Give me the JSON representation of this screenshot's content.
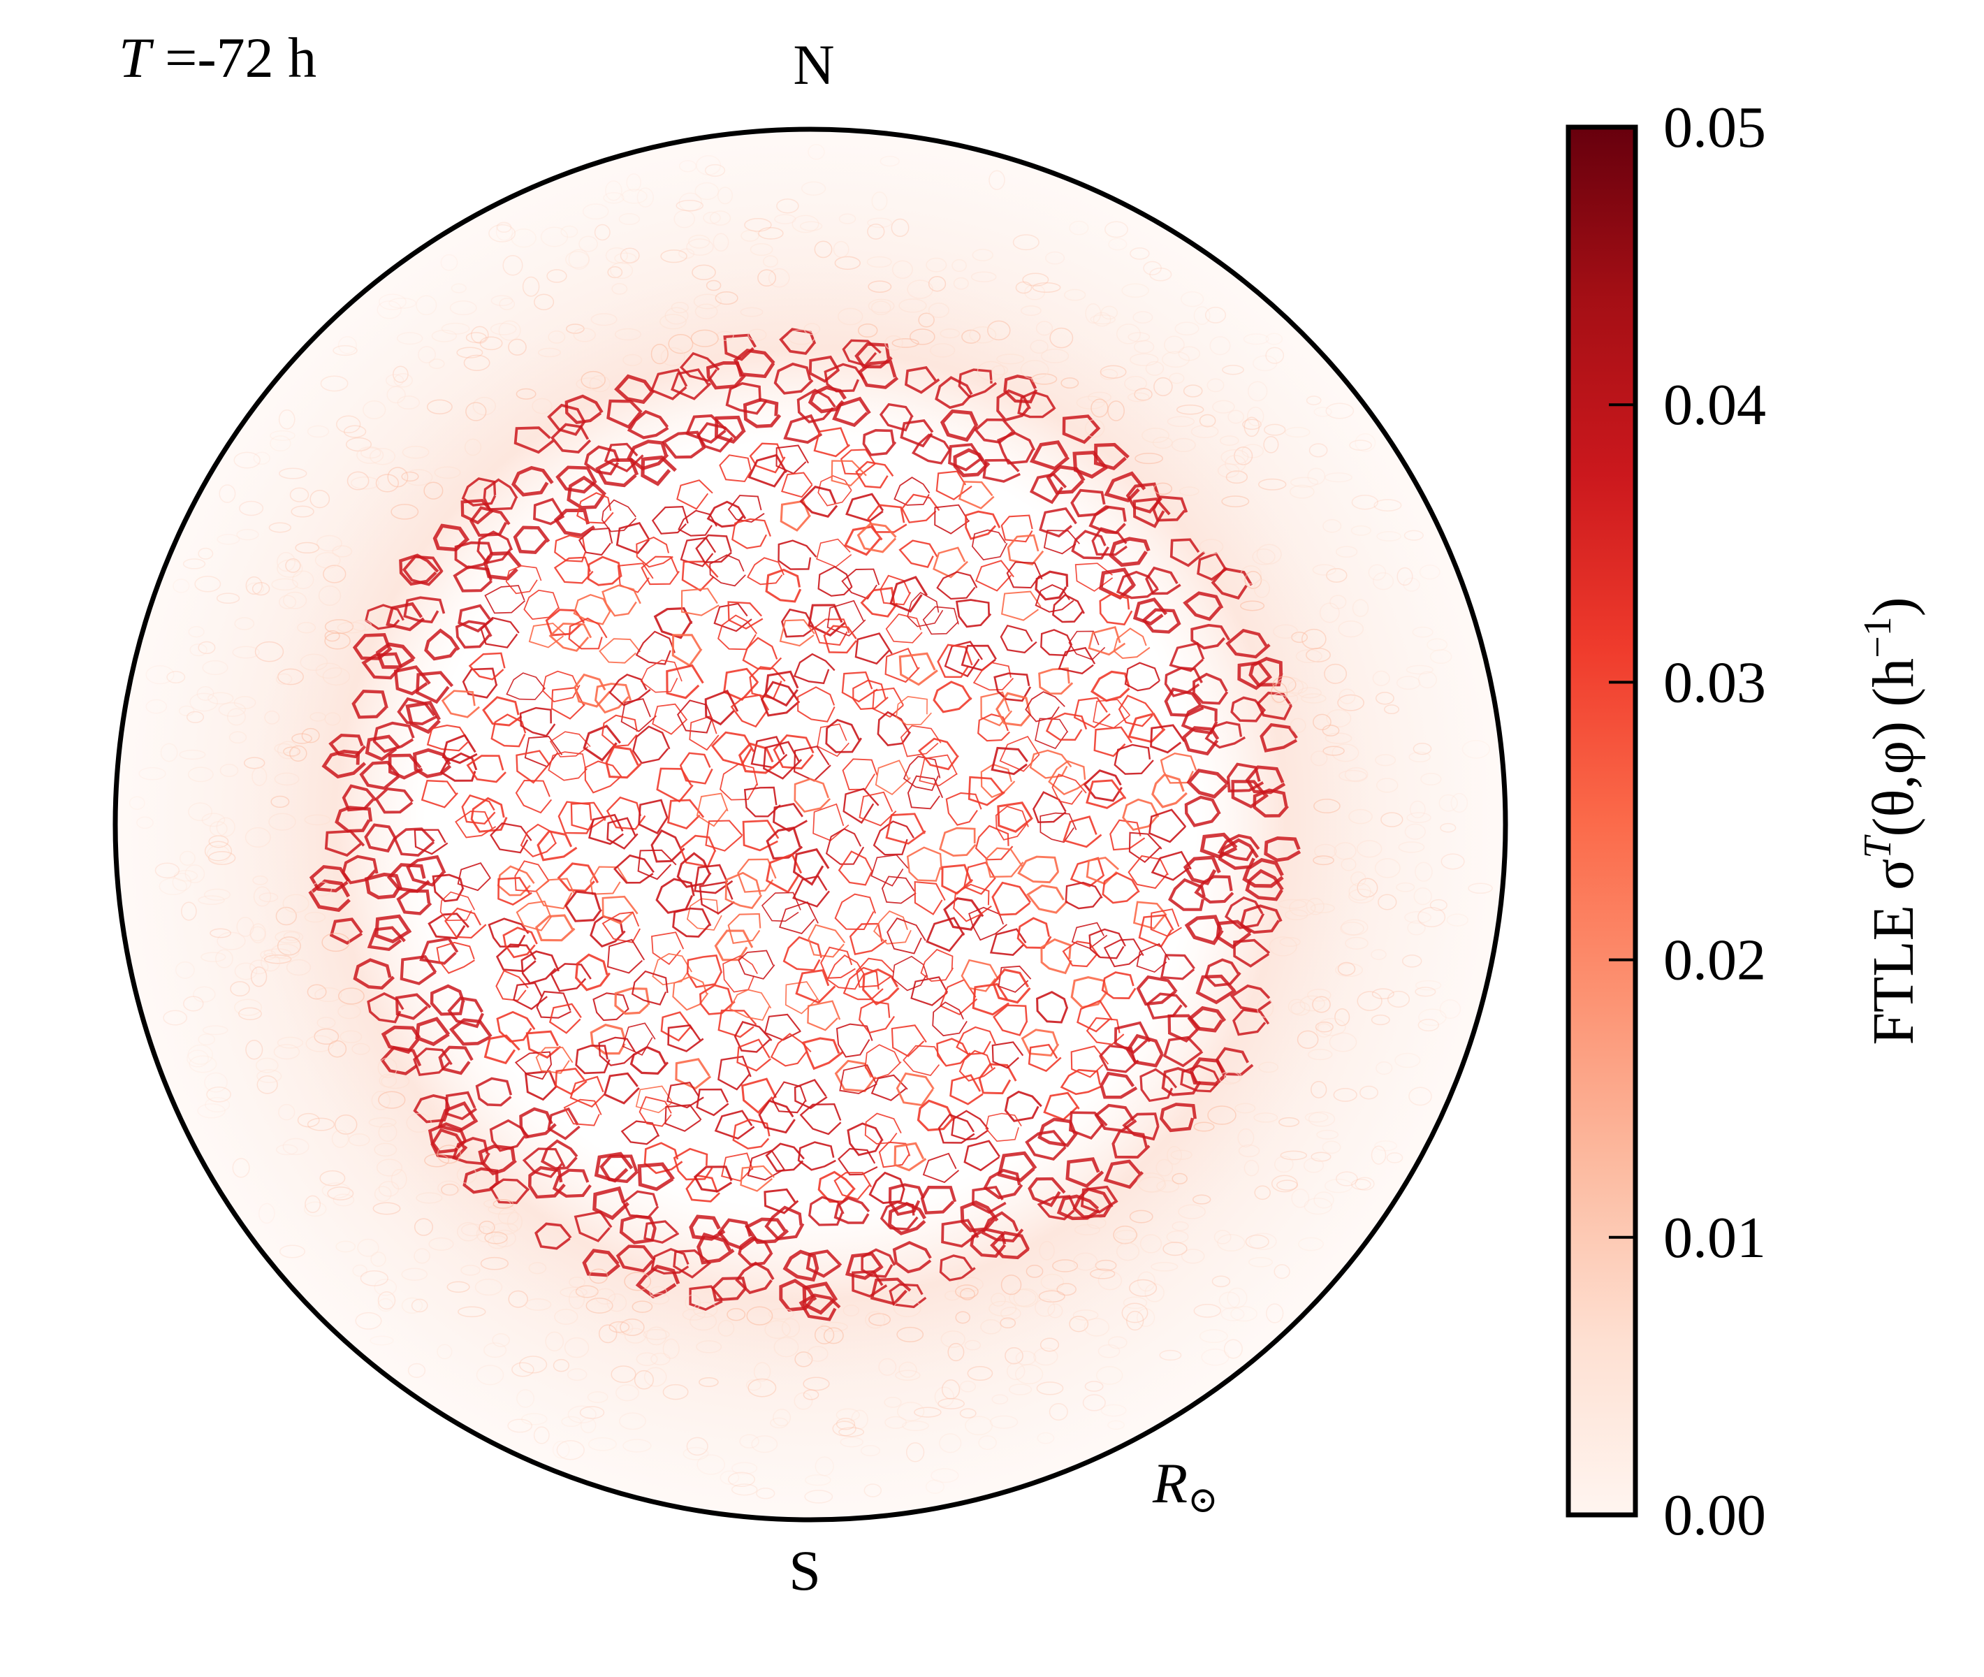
{
  "chart_data": {
    "type": "heatmap",
    "projection": "solar disk (orthographic sphere)",
    "time_label": {
      "var": "T",
      "text": " =-72 h"
    },
    "north_label": "N",
    "south_label": "S",
    "radius_label": {
      "var": "R",
      "sub": "⊙"
    },
    "colorbar": {
      "label_text": "FTLE σ",
      "label_sup": "T",
      "label_args": "(θ,φ)",
      "label_units": "(h",
      "label_units_sup": "−1",
      "label_units_close": ")",
      "range": [
        0.0,
        0.05
      ],
      "ticks": [
        "0.00",
        "0.01",
        "0.02",
        "0.03",
        "0.04",
        "0.05"
      ],
      "colormap": "Reds",
      "colors": [
        "#fff5f0",
        "#fee0d2",
        "#fcbba1",
        "#fc9272",
        "#fb6a4a",
        "#ef3b2c",
        "#cb181d",
        "#a50f15",
        "#67000d"
      ]
    },
    "field": {
      "description_values": "cellular network of ridges; interior ridge FTLE ~0.03-0.04, near-limb diffuse ~0.005-0.015",
      "core_ridge_value": 0.035,
      "ring_ridge_value": 0.038,
      "limb_haze_value": 0.004
    }
  }
}
